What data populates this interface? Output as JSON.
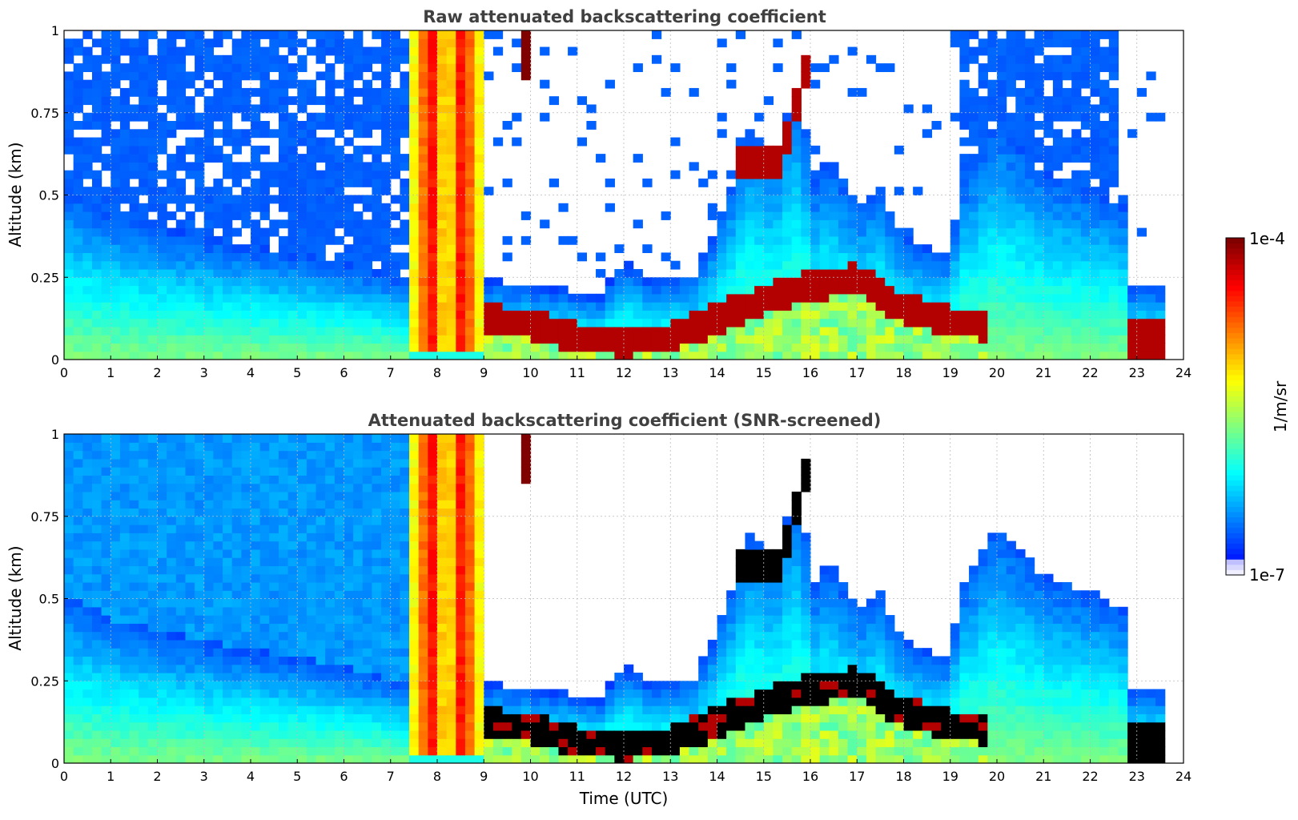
{
  "chart_data": [
    {
      "type": "heatmap",
      "title": "Raw attenuated backscattering coefficient",
      "xlabel": "",
      "ylabel": "Altitude (km)",
      "xlim": [
        0,
        24
      ],
      "ylim": [
        0,
        1
      ],
      "xticks": [
        "0",
        "1",
        "2",
        "3",
        "4",
        "5",
        "6",
        "7",
        "8",
        "9",
        "10",
        "11",
        "12",
        "13",
        "14",
        "15",
        "16",
        "17",
        "18",
        "19",
        "20",
        "21",
        "22",
        "23",
        "24"
      ],
      "yticks": [
        "0",
        "0.25",
        "0.5",
        "0.75",
        "1"
      ],
      "grid": true,
      "screened": false
    },
    {
      "type": "heatmap",
      "title": "Attenuated backscattering coefficient (SNR-screened)",
      "xlabel": "Time (UTC)",
      "ylabel": "Altitude (km)",
      "xlim": [
        0,
        24
      ],
      "ylim": [
        0,
        1
      ],
      "xticks": [
        "0",
        "1",
        "2",
        "3",
        "4",
        "5",
        "6",
        "7",
        "8",
        "9",
        "10",
        "11",
        "12",
        "13",
        "14",
        "15",
        "16",
        "17",
        "18",
        "19",
        "20",
        "21",
        "22",
        "23",
        "24"
      ],
      "yticks": [
        "0",
        "0.25",
        "0.5",
        "0.75",
        "1"
      ],
      "grid": true,
      "screened": true
    }
  ],
  "colorbar": {
    "label": "1/m/sr",
    "max_label": "1e-4",
    "min_label": "1e-7",
    "scale": "log",
    "range": [
      1e-07,
      0.0001
    ],
    "colormap": "jet"
  },
  "colors": {
    "title": "#404040",
    "grid": "#bbbbbb",
    "saturated_screened": "#000000"
  }
}
